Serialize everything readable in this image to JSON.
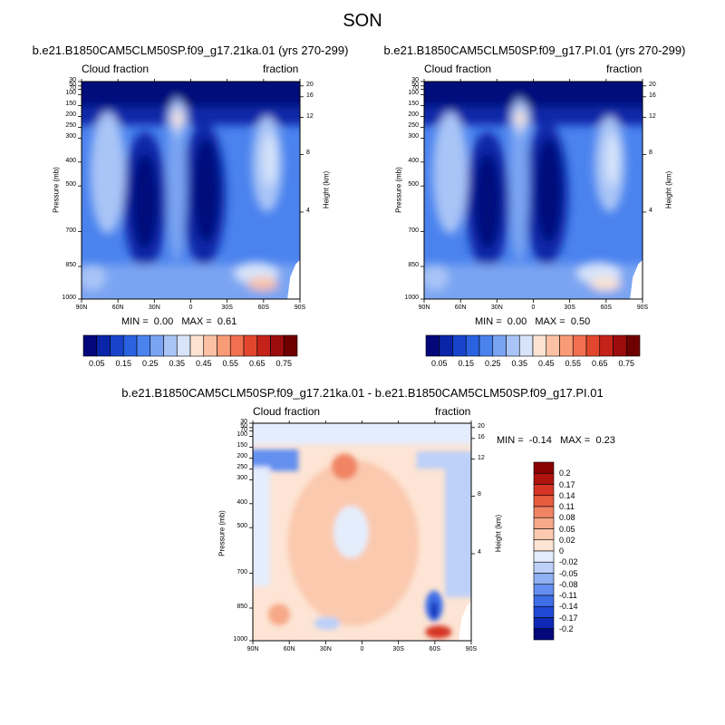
{
  "season_title": "SON",
  "colors": {
    "scale_abs": [
      "#02087a",
      "#0a25a8",
      "#1844cc",
      "#2a62e0",
      "#4a82ee",
      "#7aa4f2",
      "#a9c4f6",
      "#d7e4fa",
      "#fde3d2",
      "#fcc1a4",
      "#f99b76",
      "#f2704f",
      "#e2462e",
      "#c52219",
      "#9e0d0d",
      "#6e0000"
    ],
    "scale_diff": [
      "#02087a",
      "#0e2ab5",
      "#1f4ad6",
      "#3d6ee8",
      "#6390f0",
      "#8fb1f4",
      "#bcd0f8",
      "#e4edfc",
      "#fde4d4",
      "#fbc9ae",
      "#f7a888",
      "#f08463",
      "#e65c3d",
      "#d63424",
      "#b0140e",
      "#8a0202"
    ]
  },
  "chart_data": [
    {
      "type": "heatmap",
      "panel": "left",
      "title": "b.e21.B1850CAM5CLM50SP.f09_g17.21ka.01 (yrs 270-299)",
      "left_label": "Cloud fraction",
      "right_label": "fraction",
      "ylabel": "Pressure (mb)",
      "ylabel_right": "Height (km)",
      "x_ticks": [
        "90N",
        "60N",
        "30N",
        "0",
        "30S",
        "60S",
        "90S"
      ],
      "y_ticks": [
        "30",
        "50",
        "70",
        "100",
        "150",
        "200",
        "250",
        "300",
        "400",
        "500",
        "700",
        "850",
        "1000"
      ],
      "right_ticks": [
        "20",
        "16",
        "12",
        "8",
        "4"
      ],
      "min_label": "MIN =",
      "min_value": "0.00",
      "max_label": "MAX =",
      "max_value": "0.61",
      "colorbar_labels": [
        "0.05",
        "0.15",
        "0.25",
        "0.35",
        "0.45",
        "0.55",
        "0.65",
        "0.75"
      ]
    },
    {
      "type": "heatmap",
      "panel": "right",
      "title": "b.e21.B1850CAM5CLM50SP.f09_g17.PI.01 (yrs 270-299)",
      "left_label": "Cloud fraction",
      "right_label": "fraction",
      "ylabel": "Pressure (mb)",
      "ylabel_right": "Height (km)",
      "x_ticks": [
        "90N",
        "60N",
        "30N",
        "0",
        "30S",
        "60S",
        "90S"
      ],
      "y_ticks": [
        "30",
        "50",
        "70",
        "100",
        "150",
        "200",
        "250",
        "300",
        "400",
        "500",
        "700",
        "850",
        "1000"
      ],
      "right_ticks": [
        "20",
        "16",
        "12",
        "8",
        "4"
      ],
      "min_label": "MIN =",
      "min_value": "0.00",
      "max_label": "MAX =",
      "max_value": "0.50",
      "colorbar_labels": [
        "0.05",
        "0.15",
        "0.25",
        "0.35",
        "0.45",
        "0.55",
        "0.65",
        "0.75"
      ]
    },
    {
      "type": "heatmap",
      "panel": "diff",
      "title": "b.e21.B1850CAM5CLM50SP.f09_g17.21ka.01 - b.e21.B1850CAM5CLM50SP.f09_g17.PI.01",
      "left_label": "Cloud fraction",
      "right_label": "fraction",
      "ylabel": "Pressure (mb)",
      "ylabel_right": "Height (km)",
      "x_ticks": [
        "90N",
        "60N",
        "30N",
        "0",
        "30S",
        "60S",
        "90S"
      ],
      "y_ticks": [
        "30",
        "50",
        "70",
        "100",
        "150",
        "200",
        "250",
        "300",
        "400",
        "500",
        "700",
        "850",
        "1000"
      ],
      "right_ticks": [
        "20",
        "16",
        "12",
        "8",
        "4"
      ],
      "min_label": "MIN =",
      "min_value": "-0.14",
      "max_label": "MAX =",
      "max_value": "0.23",
      "colorbar_labels": [
        "0.2",
        "0.17",
        "0.14",
        "0.11",
        "0.08",
        "0.05",
        "0.02",
        "0",
        "-0.02",
        "-0.05",
        "-0.08",
        "-0.11",
        "-0.14",
        "-0.17",
        "-0.2"
      ]
    }
  ]
}
